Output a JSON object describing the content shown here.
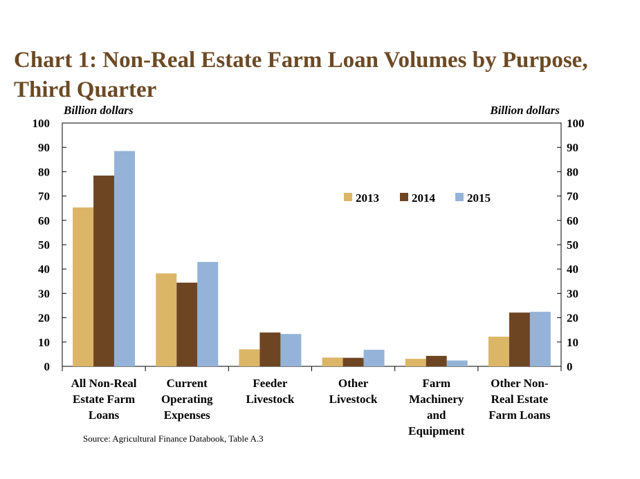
{
  "chart_data": {
    "type": "bar",
    "title": "Chart 1: Non-Real Estate Farm Loan Volumes by Purpose, Third Quarter",
    "ylabel_left": "Billion dollars",
    "ylabel_right": "Billion dollars",
    "ylim": [
      0,
      100
    ],
    "yticks": [
      "0",
      "10",
      "20",
      "30",
      "40",
      "50",
      "60",
      "70",
      "80",
      "90",
      "100"
    ],
    "categories": [
      [
        "All Non-Real",
        "Estate Farm",
        "Loans"
      ],
      [
        "Current",
        "Operating",
        "Expenses"
      ],
      [
        "Feeder",
        "Livestock"
      ],
      [
        "Other",
        "Livestock"
      ],
      [
        "Farm",
        "Machinery",
        "and",
        "Equipment"
      ],
      [
        "Other Non-",
        "Real Estate",
        "Farm Loans"
      ]
    ],
    "series": [
      {
        "name": "2013",
        "color": "#dcb667",
        "values": [
          65.3,
          38.2,
          7.0,
          3.6,
          3.1,
          12.2
        ]
      },
      {
        "name": "2014",
        "color": "#6e4523",
        "values": [
          78.4,
          34.4,
          13.9,
          3.5,
          4.3,
          22.1
        ]
      },
      {
        "name": "2015",
        "color": "#95b3d8",
        "values": [
          88.5,
          42.9,
          13.3,
          6.8,
          2.4,
          22.4
        ]
      }
    ],
    "legend_position": "inside-top-right",
    "grid": false,
    "source": "Source: Agricultural Finance Databook, Table A.3"
  }
}
